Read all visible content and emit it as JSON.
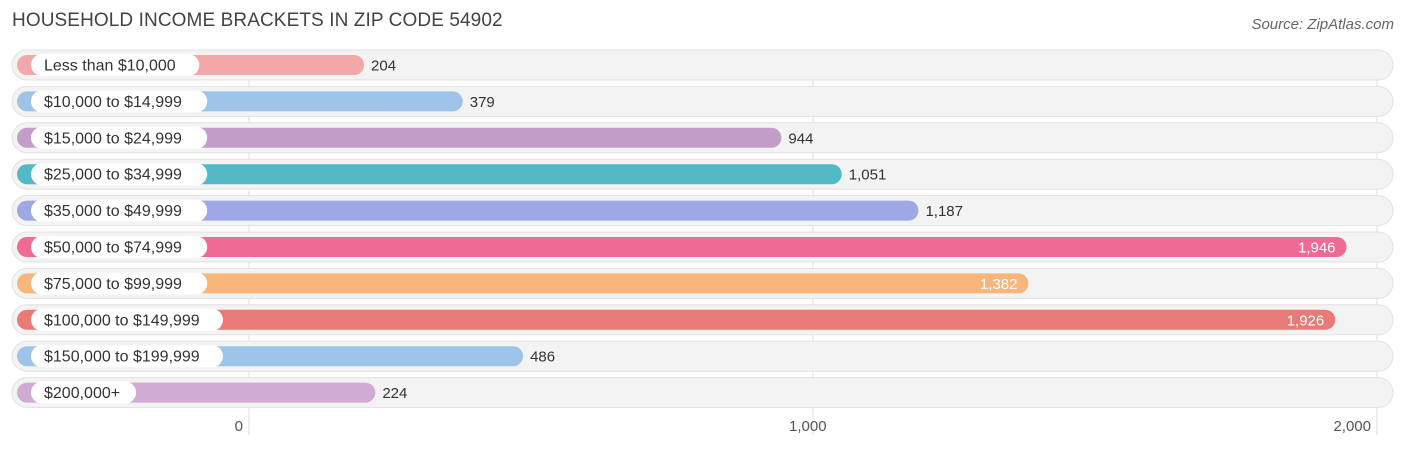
{
  "title": "HOUSEHOLD INCOME BRACKETS IN ZIP CODE 54902",
  "source": "Source: ZipAtlas.com",
  "chart_data": {
    "type": "bar",
    "orientation": "horizontal",
    "categories": [
      "Less than $10,000",
      "$10,000 to $14,999",
      "$15,000 to $24,999",
      "$25,000 to $34,999",
      "$35,000 to $49,999",
      "$50,000 to $74,999",
      "$75,000 to $99,999",
      "$100,000 to $149,999",
      "$150,000 to $199,999",
      "$200,000+"
    ],
    "values": [
      204,
      379,
      944,
      1051,
      1187,
      1946,
      1382,
      1926,
      486,
      224
    ],
    "value_labels": [
      "204",
      "379",
      "944",
      "1,051",
      "1,187",
      "1,946",
      "1,382",
      "1,926",
      "486",
      "224"
    ],
    "colors": [
      "#f2a8a8",
      "#9fc4ea",
      "#c39ec9",
      "#52b9c7",
      "#9ea8e4",
      "#f06a96",
      "#f9b57a",
      "#e97a78",
      "#9fc4ea",
      "#cfabd3"
    ],
    "xlim": [
      0,
      2000
    ],
    "xticks": [
      0,
      1000,
      2000
    ],
    "xtick_labels": [
      "0",
      "1,000",
      "2,000"
    ],
    "grid": true
  }
}
